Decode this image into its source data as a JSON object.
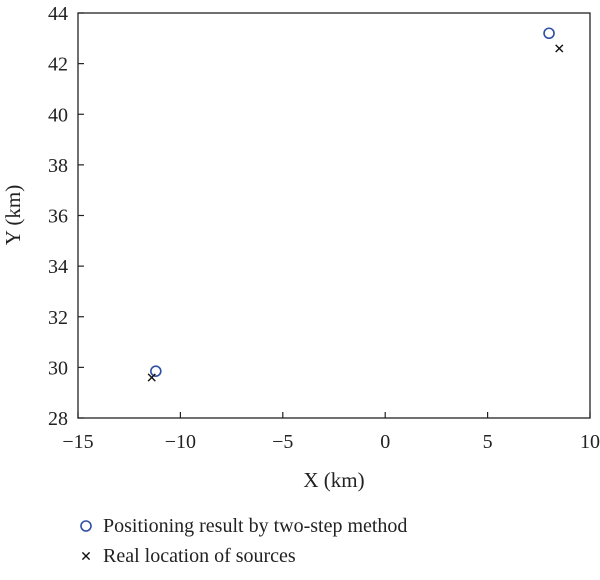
{
  "chart_data": {
    "type": "scatter",
    "xlabel": "X (km)",
    "ylabel": "Y (km)",
    "xlim": [
      -15,
      10
    ],
    "ylim": [
      28,
      44
    ],
    "xticks": [
      -15,
      -10,
      -5,
      0,
      5,
      10
    ],
    "yticks": [
      28,
      30,
      32,
      34,
      36,
      38,
      40,
      42,
      44
    ],
    "xtick_labels": [
      "−15",
      "−10",
      "−5",
      "0",
      "5",
      "10"
    ],
    "ytick_labels": [
      "28",
      "30",
      "32",
      "34",
      "36",
      "38",
      "40",
      "42",
      "44"
    ],
    "grid": false,
    "legend_position": "bottom",
    "series": [
      {
        "name": "Positioning result by two-step method",
        "marker": "circle",
        "color": "#2e4fa3",
        "points": [
          {
            "x": -11.2,
            "y": 29.85
          },
          {
            "x": 8.0,
            "y": 43.2
          }
        ]
      },
      {
        "name": "Real location of sources",
        "marker": "cross",
        "color": "#111111",
        "points": [
          {
            "x": -11.4,
            "y": 29.6
          },
          {
            "x": 8.5,
            "y": 42.6
          }
        ]
      }
    ]
  }
}
